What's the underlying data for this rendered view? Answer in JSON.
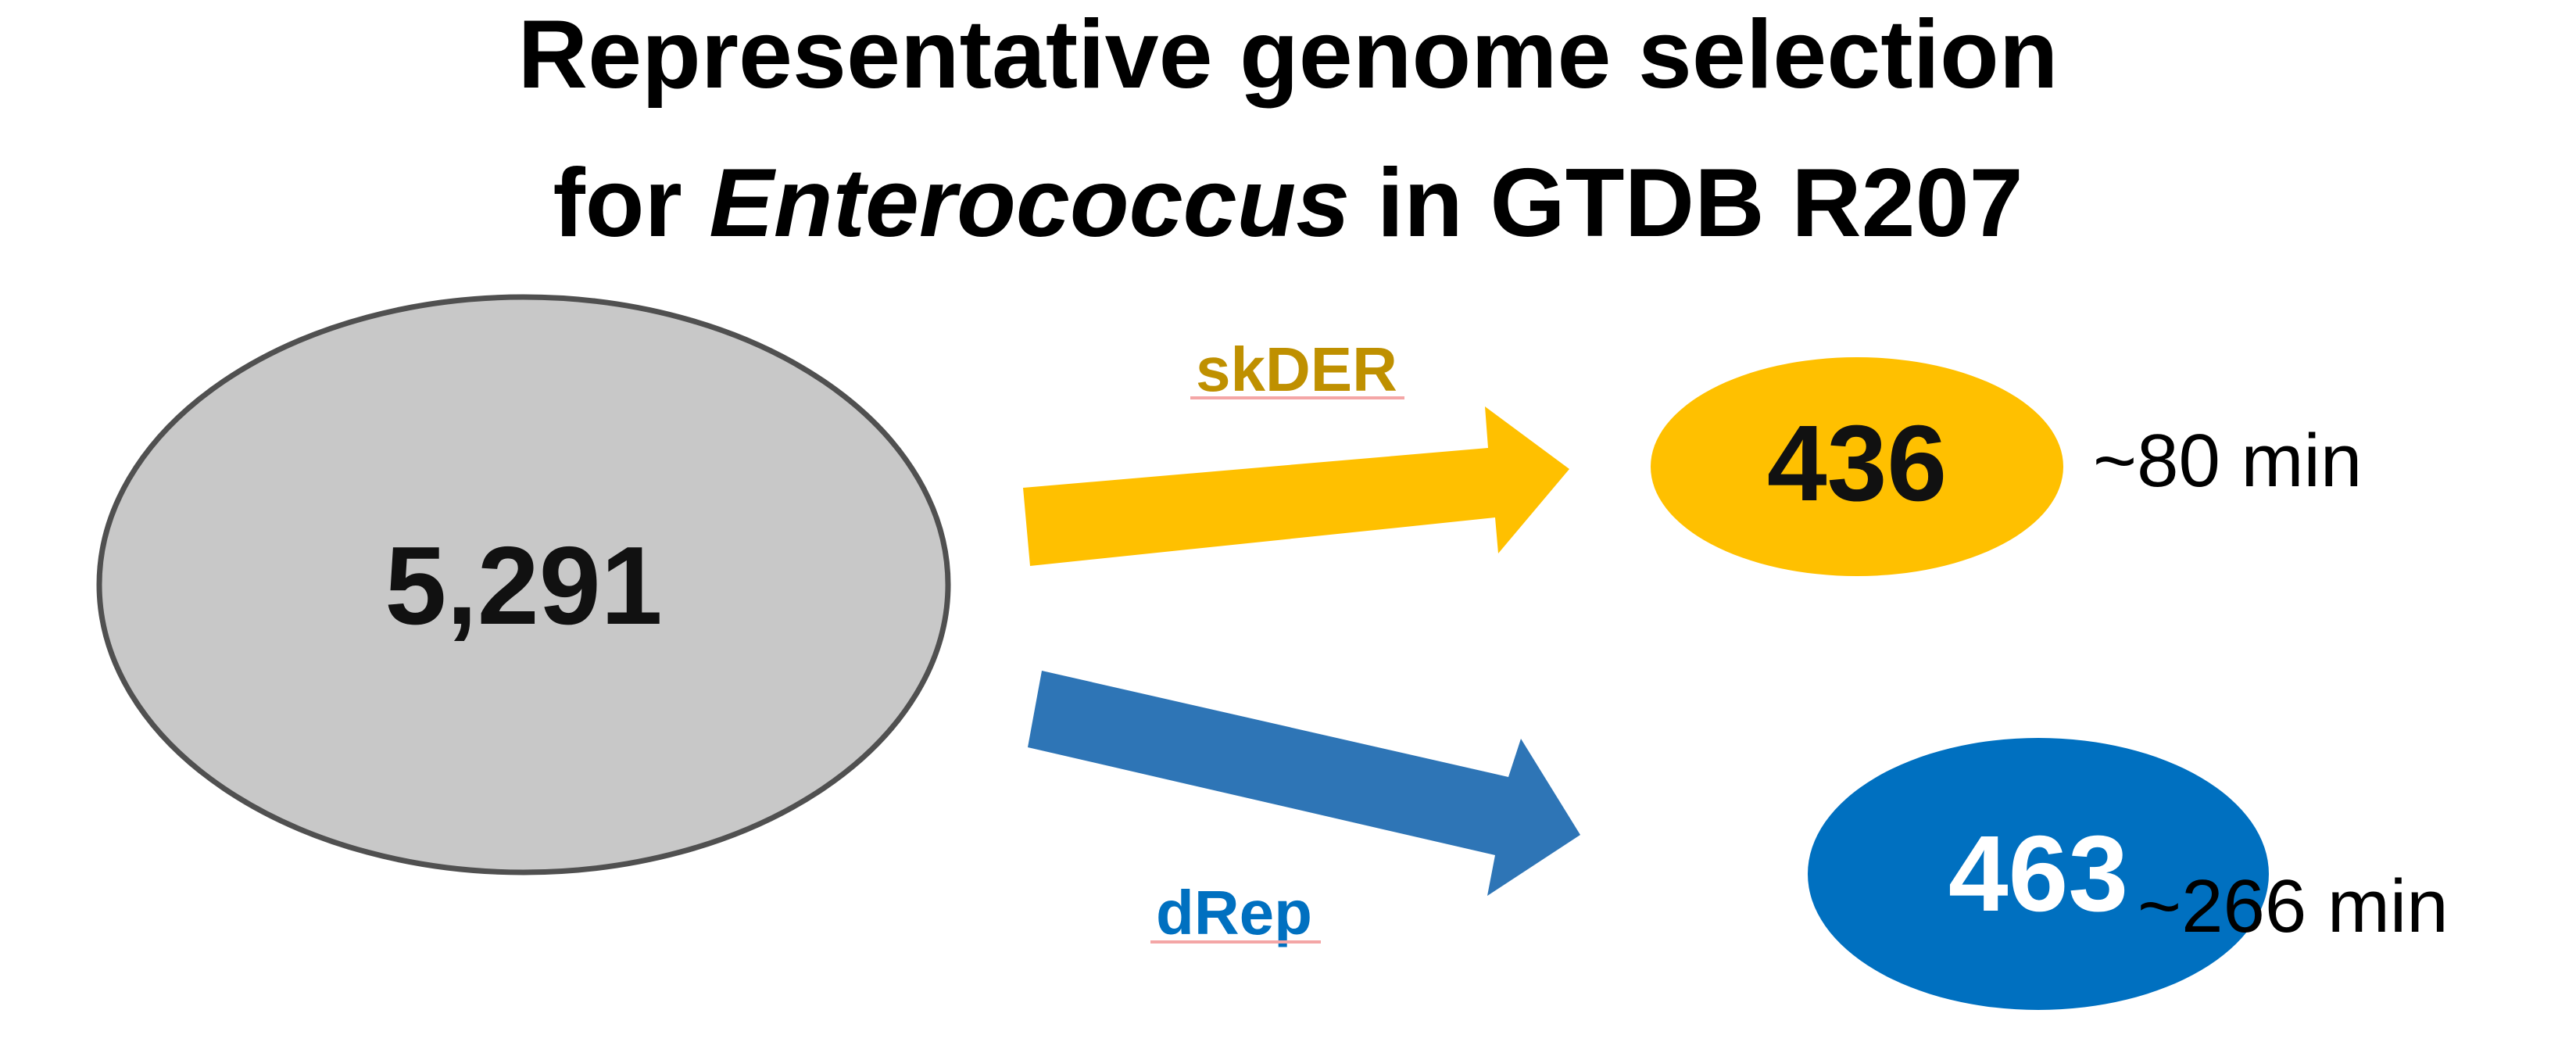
{
  "title": {
    "line1": "Representative genome selection",
    "line2_prefix": "for ",
    "line2_italic": "Enterococcus",
    "line2_suffix": " in GTDB R207"
  },
  "source": {
    "count": "5,291",
    "color": "#C8C8C8",
    "border_color": "#505050"
  },
  "skder": {
    "label": "skDER",
    "label_color": "#BF9000",
    "underline_color": "#F4A6A6",
    "count": "436",
    "fill_color": "#FFC000",
    "arrow_color": "#FFC000",
    "time": "~80 min"
  },
  "drep": {
    "label": "dRep",
    "label_color": "#0070C0",
    "underline_color": "#F4A6A6",
    "count": "463",
    "fill_color": "#0070C0",
    "count_color": "#FFFFFF",
    "arrow_color": "#2E75B6",
    "time": "~266 min"
  }
}
